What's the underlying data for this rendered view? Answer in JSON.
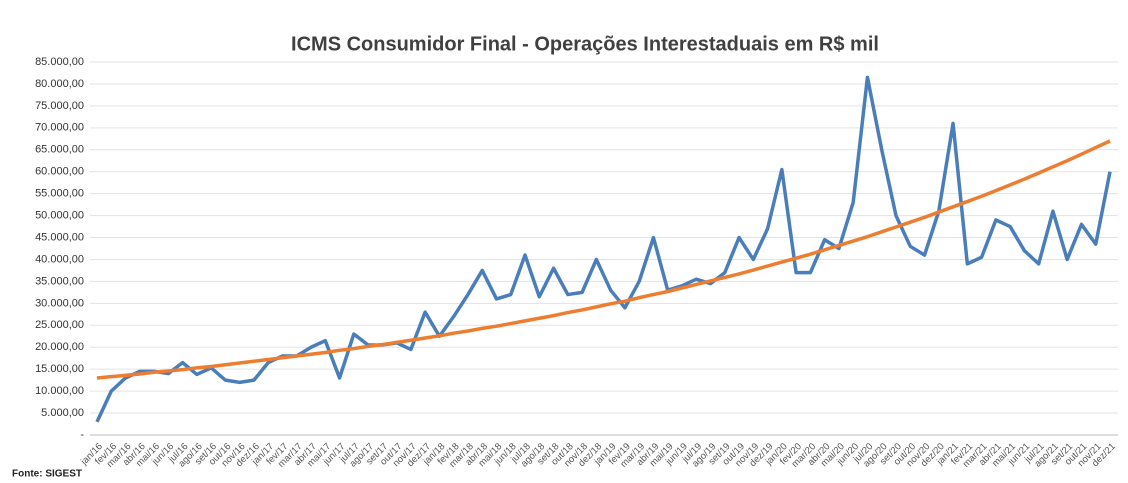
{
  "chart_data": {
    "type": "line",
    "title": "ICMS Consumidor Final - Operações Interestaduais em R$ mil",
    "source": "Fonte: SIGEST",
    "categories": [
      "jan/16",
      "fev/16",
      "mar/16",
      "abr/16",
      "mai/16",
      "jun/16",
      "jul/16",
      "ago/16",
      "set/16",
      "out/16",
      "nov/16",
      "dez/16",
      "jan/17",
      "fev/17",
      "mar/17",
      "abr/17",
      "mai/17",
      "jun/17",
      "jul/17",
      "ago/17",
      "set/17",
      "out/17",
      "nov/17",
      "dez/17",
      "jan/18",
      "fev/18",
      "mar/18",
      "abr/18",
      "mai/18",
      "jun/18",
      "jul/18",
      "ago/18",
      "set/18",
      "out/18",
      "nov/18",
      "dez/18",
      "jan/19",
      "fev/19",
      "mar/19",
      "abr/19",
      "mai/19",
      "jun/19",
      "jul/19",
      "ago/19",
      "set/19",
      "out/19",
      "nov/19",
      "dez/19",
      "jan/20",
      "fev/20",
      "mar/20",
      "abr/20",
      "mai/20",
      "jun/20",
      "jul/20",
      "ago/20",
      "set/20",
      "out/20",
      "nov/20",
      "dez/20",
      "jan/21",
      "fev/21",
      "mar/21",
      "abr/21",
      "mai/21",
      "jun/21",
      "jul/21",
      "ago/21",
      "set/21",
      "out/21",
      "nov/21",
      "dez/21"
    ],
    "series": [
      {
        "color": "#4a7ebb",
        "values": [
          3000,
          10000,
          13000,
          14500,
          14500,
          14000,
          16500,
          13800,
          15300,
          12500,
          12000,
          12500,
          16500,
          18000,
          18000,
          20000,
          21500,
          13000,
          23000,
          20500,
          20500,
          21000,
          19500,
          28000,
          22500,
          27000,
          32000,
          37500,
          31000,
          32000,
          41000,
          31500,
          38000,
          32000,
          32500,
          40000,
          33000,
          29000,
          35000,
          45000,
          33000,
          34000,
          35500,
          34500,
          37000,
          45000,
          40000,
          47000,
          60500,
          37000,
          37000,
          44500,
          42500,
          53000,
          81500,
          65000,
          50000,
          43000,
          41000,
          51000,
          71000,
          39000,
          40500,
          49000,
          47500,
          42000,
          39000,
          51000,
          40000,
          48000,
          43500,
          60000
        ]
      },
      {
        "color": "#ed7d31",
        "values": [
          13000,
          13300,
          13600,
          13900,
          14300,
          14600,
          14900,
          15300,
          15600,
          16000,
          16400,
          16800,
          17200,
          17600,
          18000,
          18400,
          18800,
          19300,
          19700,
          20200,
          20600,
          21100,
          21600,
          22100,
          22600,
          23200,
          23700,
          24300,
          24800,
          25400,
          26000,
          26600,
          27200,
          27900,
          28500,
          29200,
          29900,
          30500,
          31300,
          32000,
          32700,
          33500,
          34300,
          35100,
          35900,
          36700,
          37600,
          38500,
          39400,
          40300,
          41200,
          42200,
          43200,
          44200,
          45200,
          46300,
          47400,
          48500,
          49600,
          50800,
          52000,
          53200,
          54400,
          55700,
          57000,
          58300,
          59700,
          61100,
          62500,
          64000,
          65500,
          67000
        ]
      }
    ],
    "ylim": [
      0,
      85000
    ],
    "yticks": [
      {
        "value": 0,
        "label": "-"
      },
      {
        "value": 5000,
        "label": "5.000,00"
      },
      {
        "value": 10000,
        "label": "10.000,00"
      },
      {
        "value": 15000,
        "label": "15.000,00"
      },
      {
        "value": 20000,
        "label": "20.000,00"
      },
      {
        "value": 25000,
        "label": "25.000,00"
      },
      {
        "value": 30000,
        "label": "30.000,00"
      },
      {
        "value": 35000,
        "label": "35.000,00"
      },
      {
        "value": 40000,
        "label": "40.000,00"
      },
      {
        "value": 45000,
        "label": "45.000,00"
      },
      {
        "value": 50000,
        "label": "50.000,00"
      },
      {
        "value": 55000,
        "label": "55.000,00"
      },
      {
        "value": 60000,
        "label": "60.000,00"
      },
      {
        "value": 65000,
        "label": "65.000,00"
      },
      {
        "value": 70000,
        "label": "70.000,00"
      },
      {
        "value": 75000,
        "label": "75.000,00"
      },
      {
        "value": 80000,
        "label": "80.000,00"
      },
      {
        "value": 85000,
        "label": "85.000,00"
      }
    ],
    "grid": true
  }
}
